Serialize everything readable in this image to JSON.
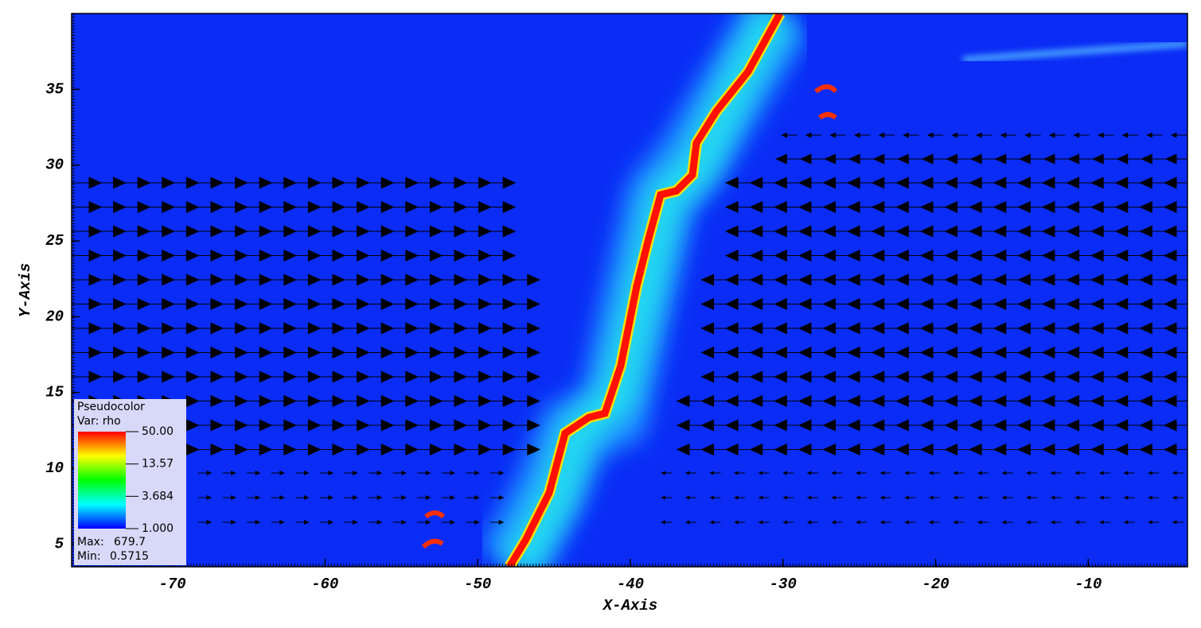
{
  "chart_data": {
    "type": "pseudocolor",
    "xlabel": "X-Axis",
    "ylabel": "Y-Axis",
    "xlim": [
      -76.6,
      -3.5
    ],
    "ylim": [
      3.5,
      40
    ],
    "xticks": [
      -70,
      -60,
      -50,
      -40,
      -30,
      -20,
      -10
    ],
    "yticks": [
      5,
      10,
      15,
      20,
      25,
      30,
      35
    ],
    "legend": {
      "title": "Pseudocolor",
      "variable": "Var: rho",
      "log_scale": true,
      "range": [
        1,
        50
      ],
      "ticks": [
        {
          "value": 50,
          "label": "50.00"
        },
        13.57,
        3.684,
        {
          "value": 1,
          "label": "1.000"
        }
      ],
      "max_label": "Max:",
      "max": 679.7,
      "min_label": "Min:",
      "min": 0.5715
    }
  }
}
